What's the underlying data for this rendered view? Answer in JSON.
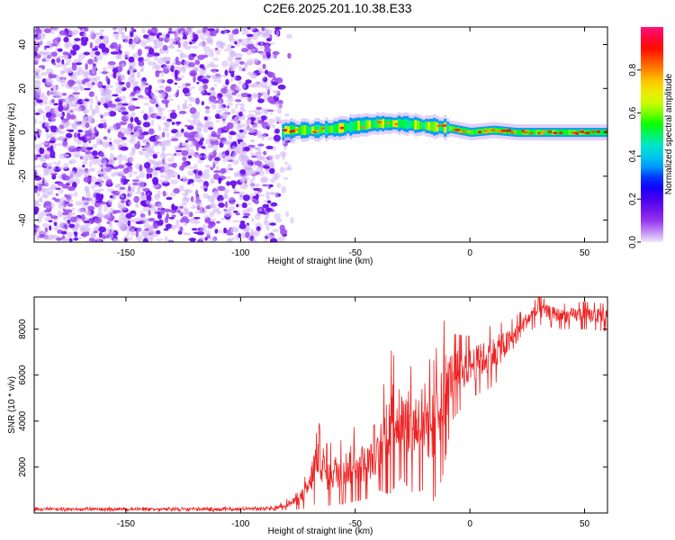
{
  "title": "C2E6.2025.201.10.38.E33",
  "chart_data": [
    {
      "type": "heatmap",
      "xlabel": "Height of straight line (km)",
      "ylabel": "Frequency (Hz)",
      "xlim": [
        -190,
        60
      ],
      "ylim": [
        -50,
        48
      ],
      "xticks": [
        -150,
        -100,
        -50,
        0,
        50
      ],
      "yticks": [
        -40,
        -20,
        0,
        20,
        40
      ],
      "colorbar": {
        "label": "Normalized spectral amplitude",
        "range": [
          0,
          1
        ],
        "ticks": [
          0.0,
          0.2,
          0.4,
          0.6,
          0.8
        ],
        "colors": [
          "#f0e6fb",
          "#9a3cf0",
          "#5b00e8",
          "#0000ff",
          "#00b4ff",
          "#00e8c8",
          "#00ff00",
          "#c8ff00",
          "#ffe000",
          "#ff7000",
          "#ff0000",
          "#ff1080"
        ]
      },
      "noise_region": {
        "x": [
          -190,
          -80
        ],
        "y": [
          -50,
          48
        ],
        "amplitude": [
          0.05,
          0.25
        ]
      },
      "signal_band": {
        "x_start": -82,
        "x_end": 60,
        "center_y": [
          {
            "x": -82,
            "y": 1
          },
          {
            "x": -70,
            "y": 1
          },
          {
            "x": -60,
            "y": 1.5
          },
          {
            "x": -50,
            "y": 3
          },
          {
            "x": -40,
            "y": 4
          },
          {
            "x": -30,
            "y": 4
          },
          {
            "x": -20,
            "y": 3
          },
          {
            "x": -10,
            "y": 2
          },
          {
            "x": 0,
            "y": 0
          },
          {
            "x": 10,
            "y": 1
          },
          {
            "x": 20,
            "y": 0
          },
          {
            "x": 40,
            "y": 0
          },
          {
            "x": 60,
            "y": 0
          }
        ],
        "peak_amplitude": 0.9
      }
    },
    {
      "type": "line",
      "xlabel": "Height of straight line (km)",
      "ylabel": "SNR (10 * v/v)",
      "xlim": [
        -190,
        60
      ],
      "ylim": [
        0,
        9400
      ],
      "xticks": [
        -150,
        -100,
        -50,
        0,
        50
      ],
      "yticks": [
        2000,
        4000,
        6000,
        8000
      ],
      "series": [
        {
          "color": "#ee2222",
          "envelope": [
            {
              "x": -190,
              "low": 80,
              "high": 250
            },
            {
              "x": -100,
              "low": 80,
              "high": 250
            },
            {
              "x": -85,
              "low": 100,
              "high": 300
            },
            {
              "x": -75,
              "low": 150,
              "high": 900
            },
            {
              "x": -70,
              "low": 200,
              "high": 2000
            },
            {
              "x": -66,
              "low": 500,
              "high": 5000
            },
            {
              "x": -63,
              "low": 300,
              "high": 3000
            },
            {
              "x": -55,
              "low": 400,
              "high": 3200
            },
            {
              "x": -50,
              "low": 500,
              "high": 3800
            },
            {
              "x": -45,
              "low": 600,
              "high": 3500
            },
            {
              "x": -40,
              "low": 1000,
              "high": 4000
            },
            {
              "x": -35,
              "low": 800,
              "high": 7200
            },
            {
              "x": -30,
              "low": 1500,
              "high": 6300
            },
            {
              "x": -25,
              "low": 900,
              "high": 6400
            },
            {
              "x": -20,
              "low": 1000,
              "high": 7000
            },
            {
              "x": -16,
              "low": 500,
              "high": 6500
            },
            {
              "x": -12,
              "low": 1500,
              "high": 8500
            },
            {
              "x": -8,
              "low": 4000,
              "high": 7800
            },
            {
              "x": 0,
              "low": 5000,
              "high": 7700
            },
            {
              "x": 10,
              "low": 5500,
              "high": 8200
            },
            {
              "x": 18,
              "low": 6500,
              "high": 8400
            },
            {
              "x": 25,
              "low": 7800,
              "high": 9000
            },
            {
              "x": 30,
              "low": 8200,
              "high": 9400
            },
            {
              "x": 40,
              "low": 8000,
              "high": 9100
            },
            {
              "x": 50,
              "low": 8000,
              "high": 9200
            },
            {
              "x": 60,
              "low": 7900,
              "high": 9100
            }
          ]
        }
      ]
    }
  ]
}
